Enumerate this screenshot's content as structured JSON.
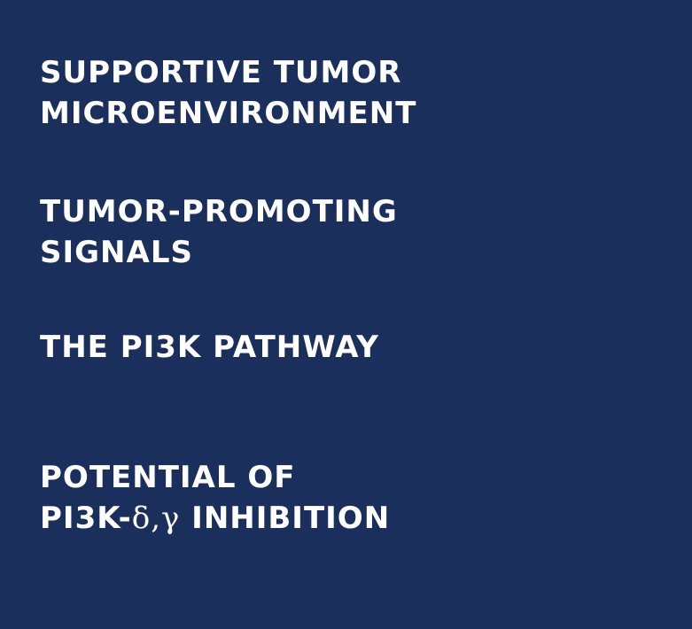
{
  "background_color": "#1b2f5c",
  "text_color": "#ffffff",
  "menu": {
    "items": [
      {
        "line1": "SUPPORTIVE TUMOR",
        "line2": "MICROENVIRONMENT"
      },
      {
        "line1": "TUMOR-PROMOTING",
        "line2": "SIGNALS"
      },
      {
        "line1": "THE PI3K PATHWAY"
      },
      {
        "line1": "POTENTIAL OF",
        "line2_prefix": "PI3K-",
        "line2_greek": "δ,γ",
        "line2_suffix": " INHIBITION"
      }
    ]
  }
}
